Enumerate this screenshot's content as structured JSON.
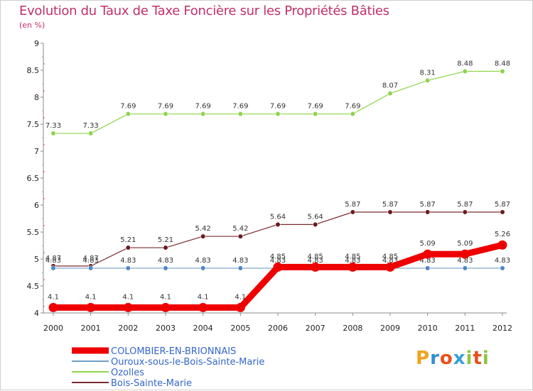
{
  "chart_data": {
    "type": "line",
    "title": "Evolution du Taux de Taxe Foncière sur les Propriétés Bâties",
    "subtitle": "(en %)",
    "x": [
      "2000",
      "2001",
      "2002",
      "2003",
      "2004",
      "2005",
      "2006",
      "2007",
      "2008",
      "2009",
      "2010",
      "2011",
      "2012"
    ],
    "ylim": [
      4,
      9
    ],
    "yticks": [
      "4",
      "4.5",
      "5",
      "5.5",
      "6",
      "6.5",
      "7",
      "7.5",
      "8",
      "8.5",
      "9"
    ],
    "series": [
      {
        "name": "Ozolles",
        "color": "#8ed44b",
        "marker": "#8ed44b",
        "width": 1.2,
        "labels": "above",
        "values": [
          7.33,
          7.33,
          7.69,
          7.69,
          7.69,
          7.69,
          7.69,
          7.69,
          7.69,
          8.07,
          8.31,
          8.48,
          8.48
        ],
        "labels_text": [
          "7.33",
          "7.33",
          "7.69",
          "7.69",
          "7.69",
          "7.69",
          "7.69",
          "7.69",
          "7.69",
          "8.07",
          "8.31",
          "8.48",
          "8.48"
        ]
      },
      {
        "name": "Bois-Sainte-Marie",
        "color": "#7a2a2e",
        "marker": "#6b1a1e",
        "width": 1.2,
        "labels": "above",
        "values": [
          4.87,
          4.87,
          5.21,
          5.21,
          5.42,
          5.42,
          5.64,
          5.64,
          5.87,
          5.87,
          5.87,
          5.87,
          5.87
        ],
        "labels_text": [
          "4.87",
          "4.87",
          "5.21",
          "5.21",
          "5.42",
          "5.42",
          "5.64",
          "5.64",
          "5.87",
          "5.87",
          "5.87",
          "5.87",
          "5.87"
        ]
      },
      {
        "name": "Ouroux-sous-le-Bois-Sainte-Marie",
        "color": "#6f9fc8",
        "marker": "#4f86c6",
        "width": 1.2,
        "labels": "above",
        "values": [
          4.83,
          4.83,
          4.83,
          4.83,
          4.83,
          4.83,
          4.83,
          4.83,
          4.83,
          4.83,
          4.83,
          4.83,
          4.83
        ],
        "labels_text": [
          "4.83",
          "4.83",
          "4.83",
          "4.83",
          "4.83",
          "4.83",
          "4.83",
          "4.83",
          "4.83",
          "4.83",
          "4.83",
          "4.83",
          "4.83"
        ]
      },
      {
        "name": "COLOMBIER-EN-BRIONNAIS",
        "color": "#ee0000",
        "marker": "#ee0000",
        "width": 9,
        "labels": "above",
        "values": [
          4.1,
          4.1,
          4.1,
          4.1,
          4.1,
          4.1,
          4.85,
          4.85,
          4.85,
          4.85,
          5.09,
          5.09,
          5.26
        ],
        "labels_text": [
          "4.1",
          "4.1",
          "4.1",
          "4.1",
          "4.1",
          "4.1",
          "4.85",
          "4.85",
          "4.85",
          "4.85",
          "5.09",
          "5.09",
          "5.26"
        ]
      }
    ],
    "legend": [
      "COLOMBIER-EN-BRIONNAIS",
      "Ouroux-sous-le-Bois-Sainte-Marie",
      "Ozolles",
      "Bois-Sainte-Marie"
    ],
    "legend_colors": [
      "#ee0000",
      "#6f9fc8",
      "#8ed44b",
      "#7a2a2e"
    ],
    "grid": false
  },
  "branding": {
    "logo_letters": [
      "P",
      "r",
      "o",
      "x",
      "i",
      "t",
      "i"
    ],
    "logo_colors": [
      "#f2a31b",
      "#2f8fd0",
      "#e8501e",
      "#3aa0d8",
      "#8cc63f",
      "#e8501e",
      "#8cc63f"
    ]
  }
}
